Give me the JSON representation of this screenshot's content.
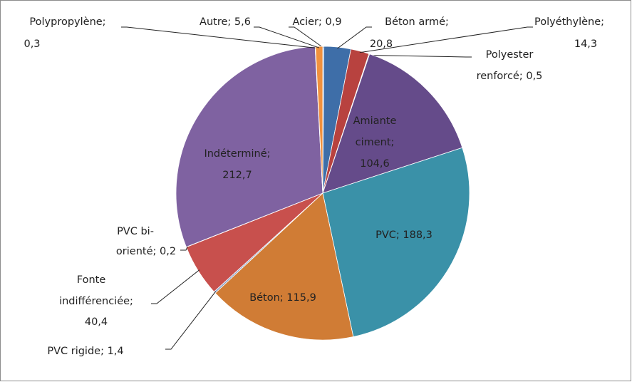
{
  "chart_data": {
    "type": "pie",
    "values": [
      0.9,
      20.8,
      14.3,
      0.5,
      104.6,
      188.3,
      115.9,
      1.4,
      40.4,
      0.2,
      212.7,
      0.3,
      5.6
    ],
    "value_labels": [
      [
        "Acier; 0,9"
      ],
      [
        "Béton armé;",
        "20,8"
      ],
      [
        "Polyéthylène;",
        "14,3"
      ],
      [
        "Polyester",
        "renforcé; 0,5"
      ],
      [
        "Amiante",
        "ciment;",
        "104,6"
      ],
      [
        "PVC; 188,3"
      ],
      [
        "Béton; 115,9"
      ],
      [
        "PVC rigide; 1,4"
      ],
      [
        "Fonte",
        "indifférenciée;",
        "40,4"
      ],
      [
        "PVC bi-",
        "orienté; 0,2"
      ],
      [
        "Indéterminé;",
        "212,7"
      ],
      [
        "Polypropylène;",
        "0,3"
      ],
      [
        "Autre; 5,6"
      ]
    ],
    "colors": [
      "#4f81bd",
      "#3e6ea8",
      "#b8423f",
      "#8aa450",
      "#654b8a",
      "#3a91a8",
      "#d07c35",
      "#8ea3c8",
      "#c8504d",
      "#a6c46a",
      "#7f62a1",
      "#4bacc6",
      "#f0913e"
    ]
  }
}
